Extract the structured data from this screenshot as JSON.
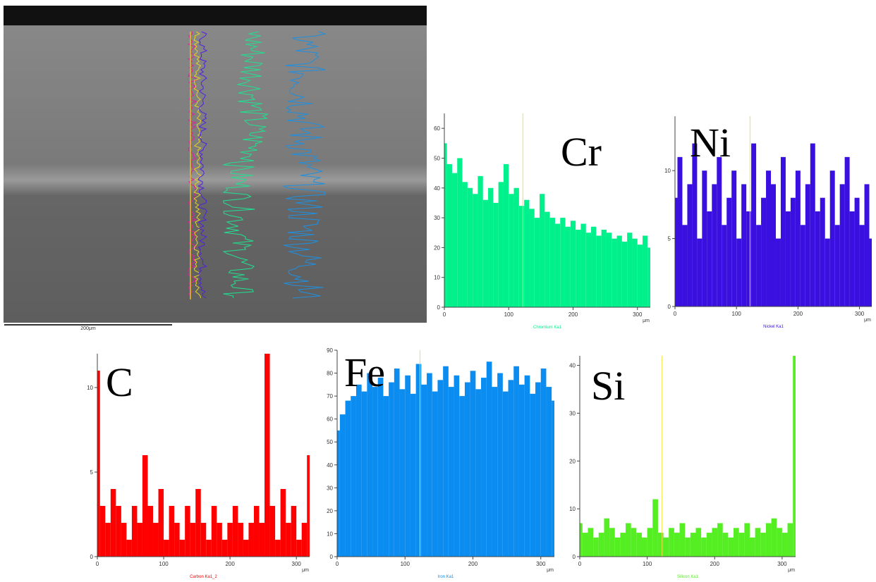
{
  "scale_bar_label": "200μm",
  "chart_data": [
    {
      "type": "bar",
      "title": "Cr",
      "x_label": "Chromium Ka1",
      "x_unit": "μm",
      "color": "#00f08c",
      "x": [
        0,
        8,
        16,
        24,
        32,
        40,
        48,
        56,
        64,
        72,
        80,
        88,
        96,
        104,
        112,
        120,
        128,
        136,
        144,
        152,
        160,
        168,
        176,
        184,
        192,
        200,
        208,
        216,
        224,
        232,
        240,
        248,
        256,
        264,
        272,
        280,
        288,
        296,
        304,
        312,
        320
      ],
      "values": [
        55,
        48,
        45,
        50,
        42,
        40,
        38,
        44,
        36,
        40,
        35,
        42,
        48,
        38,
        40,
        34,
        36,
        33,
        30,
        38,
        32,
        30,
        28,
        30,
        27,
        29,
        26,
        28,
        25,
        27,
        24,
        26,
        25,
        23,
        24,
        22,
        25,
        23,
        21,
        24,
        20
      ],
      "xlim": [
        0,
        320
      ],
      "xticks": [
        0,
        100,
        200,
        300
      ],
      "ylim": [
        0,
        65
      ],
      "yticks": [
        0,
        10,
        20,
        30,
        40,
        50,
        60
      ],
      "marker_x": 122,
      "marker_color": "#f0e040"
    },
    {
      "type": "bar",
      "title": "Ni",
      "x_label": "Nickel Ka1",
      "x_unit": "μm",
      "color": "#3a10e0",
      "x": [
        0,
        8,
        16,
        24,
        32,
        40,
        48,
        56,
        64,
        72,
        80,
        88,
        96,
        104,
        112,
        120,
        128,
        136,
        144,
        152,
        160,
        168,
        176,
        184,
        192,
        200,
        208,
        216,
        224,
        232,
        240,
        248,
        256,
        264,
        272,
        280,
        288,
        296,
        304,
        312,
        320
      ],
      "values": [
        8,
        11,
        6,
        9,
        12,
        5,
        10,
        7,
        9,
        11,
        6,
        8,
        10,
        5,
        9,
        7,
        12,
        6,
        8,
        10,
        9,
        5,
        11,
        7,
        8,
        10,
        6,
        9,
        12,
        7,
        8,
        5,
        10,
        6,
        9,
        11,
        7,
        8,
        6,
        9,
        5
      ],
      "xlim": [
        0,
        320
      ],
      "xticks": [
        0,
        100,
        200,
        300
      ],
      "ylim": [
        0,
        14
      ],
      "yticks": [
        0,
        5,
        10
      ],
      "marker_x": 122,
      "marker_color": "#f0e040"
    },
    {
      "type": "bar",
      "title": "C",
      "x_label": "Carbon Ka1_2",
      "x_unit": "μm",
      "color": "#ff0000",
      "x": [
        0,
        8,
        16,
        24,
        32,
        40,
        48,
        56,
        64,
        72,
        80,
        88,
        96,
        104,
        112,
        120,
        128,
        136,
        144,
        152,
        160,
        168,
        176,
        184,
        192,
        200,
        208,
        216,
        224,
        232,
        240,
        248,
        256,
        264,
        272,
        280,
        288,
        296,
        304,
        312,
        320
      ],
      "values": [
        11,
        3,
        2,
        4,
        3,
        2,
        1,
        3,
        2,
        6,
        3,
        2,
        4,
        1,
        3,
        2,
        1,
        3,
        2,
        4,
        2,
        1,
        3,
        2,
        1,
        2,
        3,
        2,
        1,
        2,
        3,
        2,
        12,
        3,
        1,
        4,
        2,
        3,
        1,
        2,
        6
      ],
      "xlim": [
        0,
        320
      ],
      "xticks": [
        0,
        100,
        200,
        300
      ],
      "ylim": [
        0,
        12
      ],
      "yticks": [
        0,
        5,
        10
      ]
    },
    {
      "type": "bar",
      "title": "Fe",
      "x_label": "Iron Ka1",
      "x_unit": "μm",
      "color": "#0a8cf0",
      "x": [
        0,
        8,
        16,
        24,
        32,
        40,
        48,
        56,
        64,
        72,
        80,
        88,
        96,
        104,
        112,
        120,
        128,
        136,
        144,
        152,
        160,
        168,
        176,
        184,
        192,
        200,
        208,
        216,
        224,
        232,
        240,
        248,
        256,
        264,
        272,
        280,
        288,
        296,
        304,
        312,
        320
      ],
      "values": [
        55,
        62,
        68,
        70,
        75,
        72,
        80,
        74,
        78,
        70,
        76,
        82,
        73,
        79,
        71,
        84,
        75,
        80,
        72,
        77,
        83,
        74,
        79,
        70,
        76,
        81,
        73,
        78,
        85,
        74,
        80,
        72,
        77,
        83,
        75,
        79,
        71,
        76,
        82,
        74,
        68
      ],
      "xlim": [
        0,
        320
      ],
      "xticks": [
        0,
        100,
        200,
        300
      ],
      "ylim": [
        0,
        90
      ],
      "yticks": [
        0,
        10,
        20,
        30,
        40,
        50,
        60,
        70,
        80,
        90
      ],
      "marker_x": 122,
      "marker_color": "#f0e040"
    },
    {
      "type": "bar",
      "title": "Si",
      "x_label": "Silicon Ka1",
      "x_unit": "μm",
      "color": "#55ee22",
      "x": [
        0,
        8,
        16,
        24,
        32,
        40,
        48,
        56,
        64,
        72,
        80,
        88,
        96,
        104,
        112,
        120,
        128,
        136,
        144,
        152,
        160,
        168,
        176,
        184,
        192,
        200,
        208,
        216,
        224,
        232,
        240,
        248,
        256,
        264,
        272,
        280,
        288,
        296,
        304,
        312,
        320
      ],
      "values": [
        7,
        5,
        6,
        4,
        5,
        8,
        6,
        4,
        5,
        7,
        6,
        5,
        4,
        6,
        12,
        5,
        4,
        6,
        5,
        7,
        4,
        5,
        6,
        4,
        5,
        6,
        7,
        5,
        4,
        6,
        5,
        7,
        4,
        6,
        5,
        7,
        8,
        6,
        5,
        7,
        42
      ],
      "xlim": [
        0,
        320
      ],
      "xticks": [
        0,
        100,
        200,
        300
      ],
      "ylim": [
        0,
        42
      ],
      "yticks": [
        0,
        10,
        20,
        30,
        40
      ],
      "marker_x": 122,
      "marker_color": "#f0e040"
    }
  ]
}
